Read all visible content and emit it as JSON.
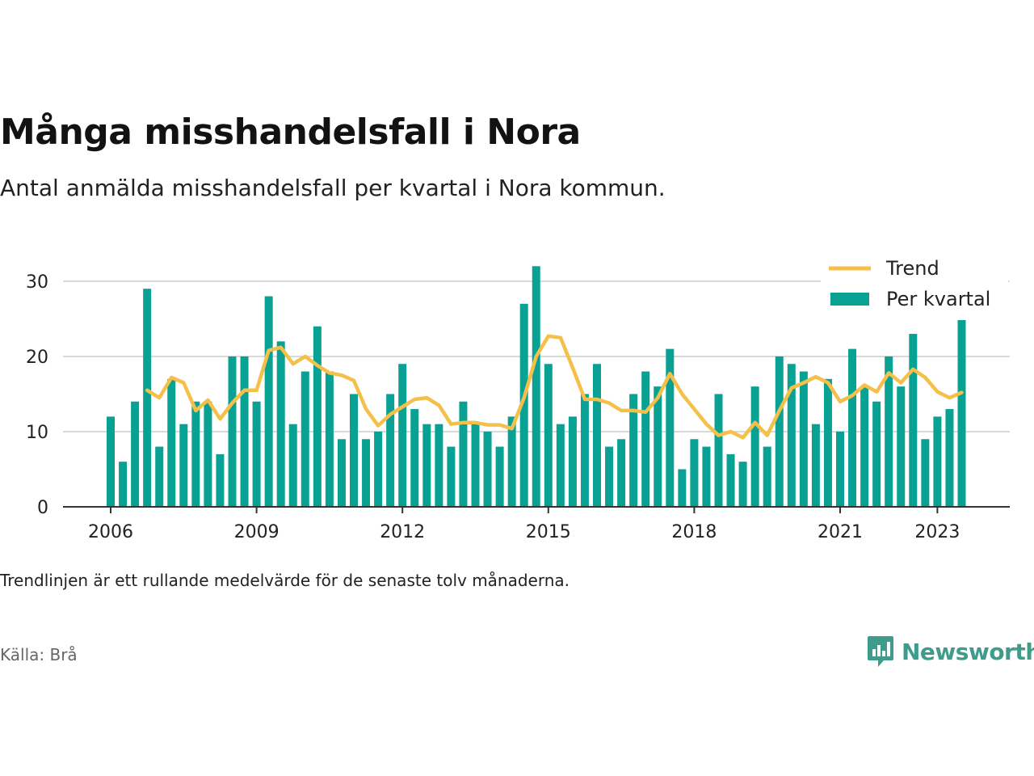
{
  "title": "Många misshandelsfall i Nora",
  "subtitle": "Antal anmälda misshandelsfall per kvartal i Nora kommun.",
  "note": "Trendlinjen är ett rullande medelvärde för de senaste tolv månaderna.",
  "source": "Källa: Brå",
  "brand": {
    "name": "Newsworthy",
    "color": "#3f9c8c",
    "icon": "newsworthy-logo-icon"
  },
  "colors": {
    "bar": "#0aa195",
    "trend": "#f5c04a",
    "grid": "#d9d9d9",
    "axis": "#333333"
  },
  "chart_data": {
    "type": "bar",
    "title": "Många misshandelsfall i Nora",
    "xlabel": "",
    "ylabel": "",
    "ylim": [
      0,
      33
    ],
    "yticks": [
      0,
      10,
      20,
      30
    ],
    "xticks": [
      "2006",
      "2009",
      "2012",
      "2015",
      "2018",
      "2021",
      "2023"
    ],
    "x_start": "2006 Q1",
    "legend_position": "top-right",
    "grid": true,
    "series": [
      {
        "name": "Per kvartal",
        "kind": "bar",
        "values": [
          12,
          6,
          14,
          29,
          8,
          17,
          11,
          14,
          14,
          7,
          20,
          20,
          14,
          28,
          22,
          11,
          18,
          24,
          18,
          9,
          15,
          9,
          10,
          15,
          19,
          13,
          11,
          11,
          8,
          14,
          11,
          10,
          8,
          12,
          27,
          32,
          19,
          11,
          12,
          15,
          19,
          8,
          9,
          15,
          18,
          16,
          21,
          5,
          9,
          8,
          15,
          7,
          6,
          16,
          8,
          20,
          19,
          18,
          11,
          17,
          10,
          21,
          16,
          14,
          20,
          16,
          23,
          9,
          12,
          13,
          25.7
        ]
      },
      {
        "name": "Trend",
        "kind": "line",
        "start_index": 3,
        "values": [
          15.5,
          14.5,
          17.2,
          16.5,
          12.8,
          14.2,
          11.7,
          13.8,
          15.5,
          15.5,
          20.8,
          21.2,
          19.0,
          20.0,
          18.8,
          17.8,
          17.5,
          16.8,
          13.0,
          10.8,
          12.3,
          13.3,
          14.3,
          14.5,
          13.5,
          11.0,
          11.2,
          11.2,
          10.9,
          10.9,
          10.4,
          14.5,
          20.0,
          22.7,
          22.5,
          18.5,
          14.3,
          14.3,
          13.8,
          12.8,
          12.8,
          12.6,
          14.5,
          17.7,
          15.0,
          13.0,
          11.0,
          9.5,
          10.0,
          9.2,
          11.2,
          9.5,
          12.8,
          15.8,
          16.5,
          17.3,
          16.5,
          14.0,
          14.8,
          16.2,
          15.3,
          17.8,
          16.5,
          18.3,
          17.2,
          15.3,
          14.5,
          15.2
        ]
      }
    ]
  }
}
